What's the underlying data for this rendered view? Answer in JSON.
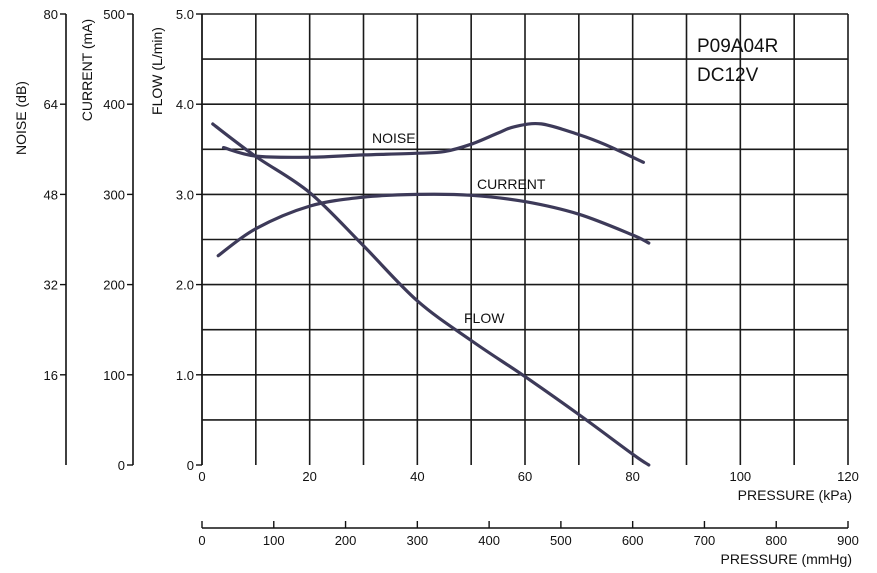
{
  "model_label_1": "P09A04R",
  "model_label_2": "DC12V",
  "chart_data": {
    "type": "line",
    "x": {
      "label": "PRESSURE (kPa)",
      "range": [
        0,
        120
      ],
      "ticks": [
        0,
        20,
        40,
        60,
        80,
        100,
        120
      ]
    },
    "x2": {
      "label": "PRESSURE (mmHg)",
      "range": [
        0,
        900
      ],
      "ticks": [
        0,
        100,
        200,
        300,
        400,
        500,
        600,
        700,
        800,
        900
      ]
    },
    "y_axes": [
      {
        "id": "flow",
        "label": "FLOW (L/min)",
        "range": [
          0,
          5.0
        ],
        "ticks": [
          "0",
          "1.0",
          "2.0",
          "3.0",
          "4.0",
          "5.0"
        ]
      },
      {
        "id": "current",
        "label": "CURRENT (mA)",
        "range": [
          0,
          500
        ],
        "ticks": [
          "0",
          "100",
          "200",
          "300",
          "400",
          "500"
        ]
      },
      {
        "id": "noise",
        "label": "NOISE (dB)",
        "range": [
          0,
          80
        ],
        "ticks": [
          "16",
          "32",
          "48",
          "64",
          "80"
        ]
      }
    ],
    "grid": true,
    "series": [
      {
        "name": "NOISE",
        "axis": "noise",
        "points": [
          [
            4,
            56.3
          ],
          [
            10,
            54.8
          ],
          [
            20,
            54.6
          ],
          [
            30,
            55.0
          ],
          [
            40,
            55.3
          ],
          [
            45,
            55.6
          ],
          [
            50,
            56.9
          ],
          [
            55,
            58.9
          ],
          [
            58,
            60.0
          ],
          [
            63,
            60.5
          ],
          [
            70,
            58.6
          ],
          [
            75,
            56.8
          ],
          [
            82,
            53.7
          ]
        ]
      },
      {
        "name": "CURRENT",
        "axis": "current",
        "points": [
          [
            3,
            232
          ],
          [
            10,
            262
          ],
          [
            20,
            287
          ],
          [
            30,
            297
          ],
          [
            40,
            300
          ],
          [
            50,
            299
          ],
          [
            60,
            292
          ],
          [
            70,
            278
          ],
          [
            80,
            255
          ],
          [
            83,
            246
          ]
        ]
      },
      {
        "name": "FLOW",
        "axis": "flow",
        "points": [
          [
            2,
            3.78
          ],
          [
            10,
            3.42
          ],
          [
            20,
            3.02
          ],
          [
            30,
            2.43
          ],
          [
            40,
            1.82
          ],
          [
            50,
            1.38
          ],
          [
            60,
            0.98
          ],
          [
            70,
            0.56
          ],
          [
            80,
            0.12
          ],
          [
            83,
            0
          ]
        ]
      }
    ]
  }
}
